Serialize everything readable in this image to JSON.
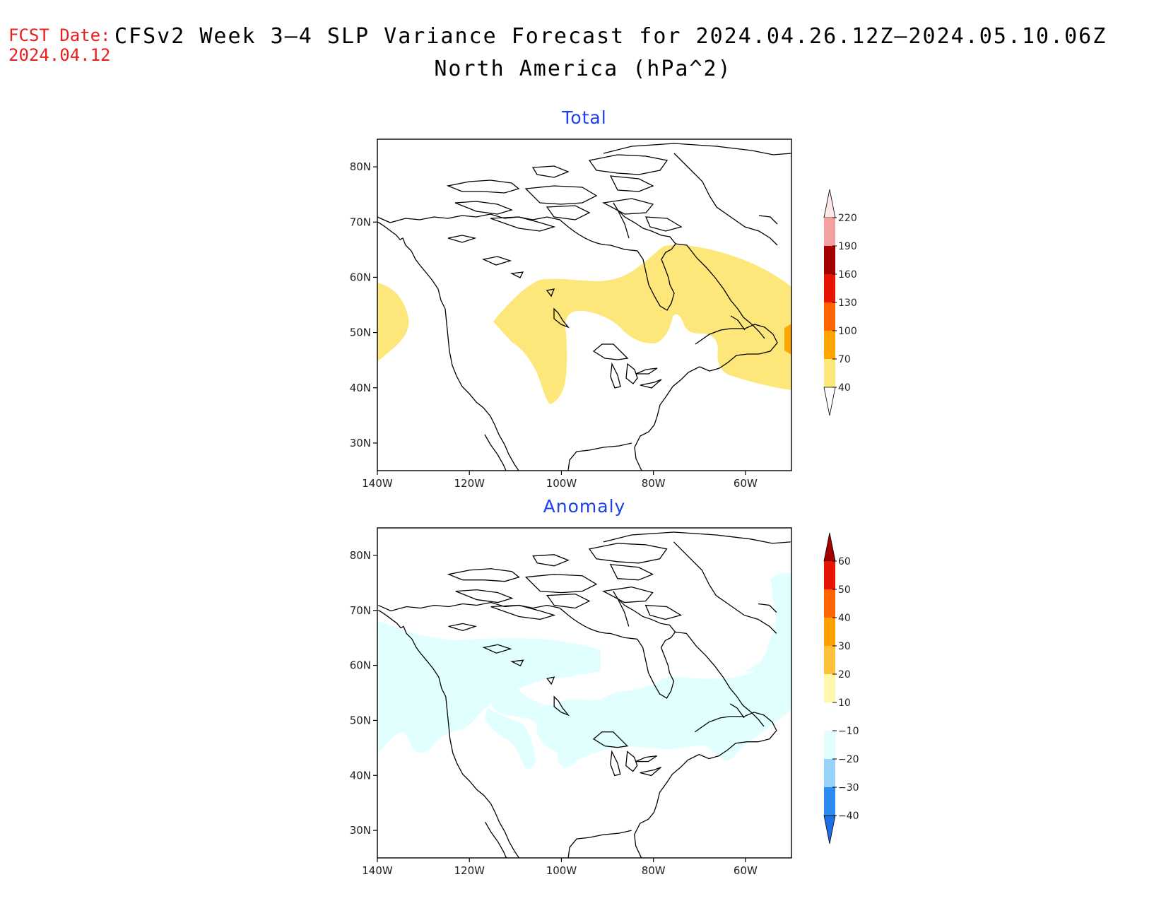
{
  "header": {
    "fcst_label": "FCST Date:",
    "fcst_date": "2024.04.12",
    "title": "CFSv2 Week 3–4 SLP Variance Forecast for 2024.04.26.12Z–2024.05.10.06Z",
    "subtitle": "North America (hPa^2)"
  },
  "axes": {
    "lat_labels": [
      "80N",
      "70N",
      "60N",
      "50N",
      "40N",
      "30N"
    ],
    "lat_values": [
      80,
      70,
      60,
      50,
      40,
      30
    ],
    "lon_labels": [
      "140W",
      "120W",
      "100W",
      "80W",
      "60W"
    ],
    "lon_values": [
      -140,
      -120,
      -100,
      -80,
      -60
    ],
    "lon_range": [
      -140,
      -50
    ],
    "lat_range": [
      25,
      85
    ]
  },
  "panels": [
    {
      "title": "Total",
      "colorbar": {
        "labels": [
          "40",
          "70",
          "100",
          "130",
          "160",
          "190",
          "220"
        ],
        "colors": [
          "#ffffff",
          "#fde77a",
          "#ffa500",
          "#ff6400",
          "#e61400",
          "#a50000",
          "#f5a0a0",
          "#fde8e8"
        ]
      }
    },
    {
      "title": "Anomaly",
      "colorbar": {
        "labels": [
          "−40",
          "−30",
          "−20",
          "−10",
          "10",
          "20",
          "30",
          "40",
          "50",
          "60"
        ],
        "colors": [
          "#1e6ee6",
          "#2d8cf0",
          "#96d2fa",
          "#e1ffff",
          "#ffffff",
          "#fff8aa",
          "#ffc03c",
          "#ffa000",
          "#ff6400",
          "#e61400",
          "#a50000"
        ]
      }
    }
  ]
}
